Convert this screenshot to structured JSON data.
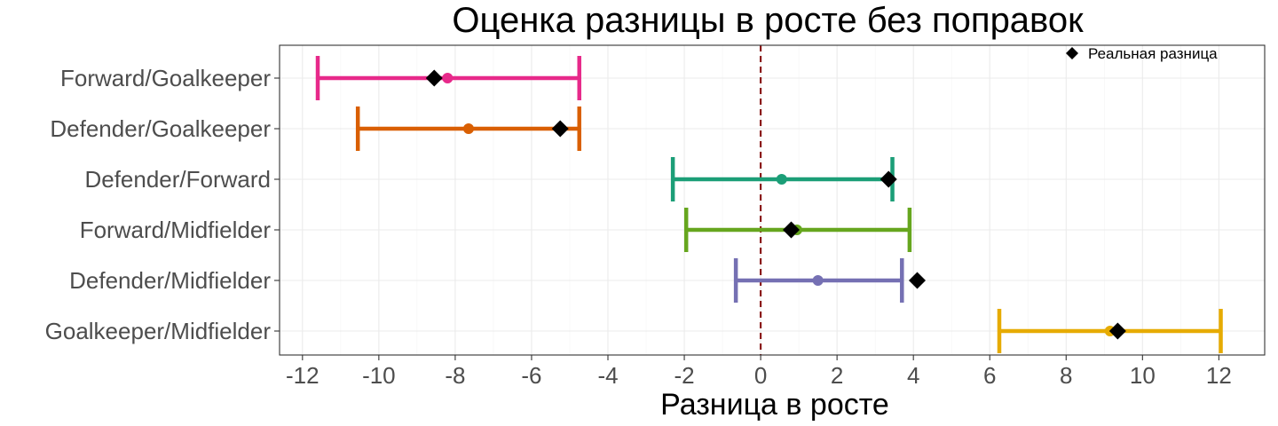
{
  "chart_data": {
    "type": "errorbar",
    "title": "Оценка разницы в росте без поправок",
    "xlabel": "Разница в росте",
    "ylabel": "",
    "xlim": [
      -12.6,
      13.2
    ],
    "xticks": [
      -12,
      -10,
      -8,
      -6,
      -4,
      -2,
      0,
      2,
      4,
      6,
      8,
      10,
      12
    ],
    "reference_line": {
      "x": 0,
      "style": "dashed",
      "color": "#8b1a1a"
    },
    "grid": true,
    "legend": {
      "position": "top-right",
      "label": "Реальная разница",
      "marker": "diamond"
    },
    "categories": [
      "Forward/Goalkeeper",
      "Defender/Goalkeeper",
      "Defender/Forward",
      "Forward/Midfielder",
      "Defender/Midfielder",
      "Goalkeeper/Midfielder"
    ],
    "series": [
      {
        "category": "Forward/Goalkeeper",
        "estimate": -8.2,
        "lower": -11.6,
        "upper": -4.75,
        "actual": -8.55,
        "color": "#e7298a"
      },
      {
        "category": "Defender/Goalkeeper",
        "estimate": -7.65,
        "lower": -10.55,
        "upper": -4.75,
        "actual": -5.25,
        "color": "#d95f02"
      },
      {
        "category": "Defender/Forward",
        "estimate": 0.55,
        "lower": -2.3,
        "upper": 3.45,
        "actual": 3.35,
        "color": "#1b9e77"
      },
      {
        "category": "Forward/Midfielder",
        "estimate": 0.95,
        "lower": -1.95,
        "upper": 3.9,
        "actual": 0.8,
        "color": "#66a61e"
      },
      {
        "category": "Defender/Midfielder",
        "estimate": 1.5,
        "lower": -0.65,
        "upper": 3.7,
        "actual": 4.1,
        "color": "#7570b3"
      },
      {
        "category": "Goalkeeper/Midfielder",
        "estimate": 9.15,
        "lower": 6.25,
        "upper": 12.05,
        "actual": 9.35,
        "color": "#e6ab02"
      }
    ]
  }
}
